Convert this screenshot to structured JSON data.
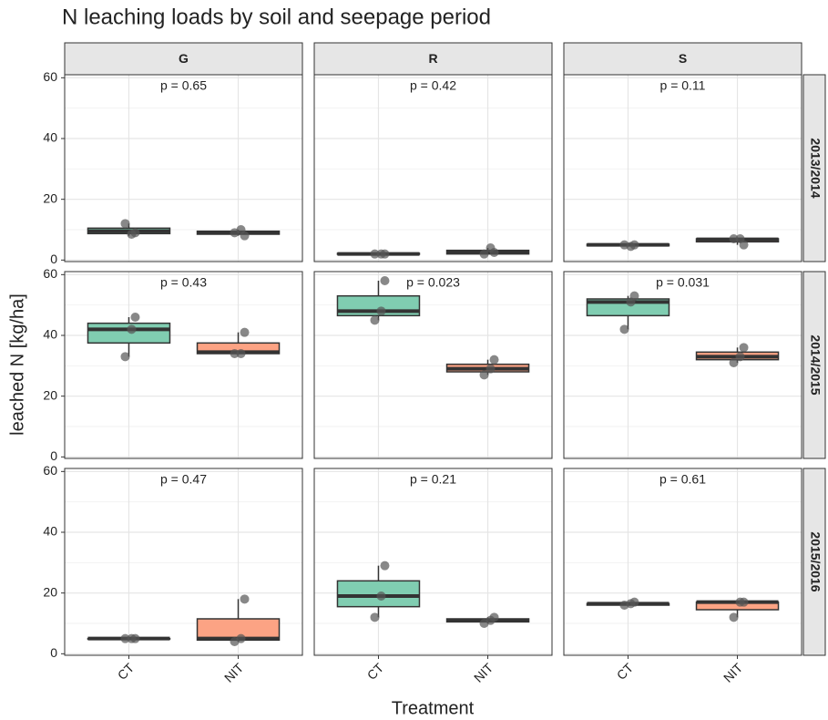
{
  "chart_data": {
    "type": "box",
    "title": "N leaching loads by soil and seepage period",
    "x_label": "Treatment",
    "y_label": "leached N [kg/ha]",
    "columns": [
      "G",
      "R",
      "S"
    ],
    "rows": [
      "2013/2014",
      "2014/2015",
      "2015/2016"
    ],
    "categories": [
      "CT",
      "NIT"
    ],
    "colors": [
      "#80cdb1",
      "#fca384"
    ],
    "ylim": [
      -0.5,
      61
    ],
    "yticks": [
      0,
      20,
      40,
      60
    ],
    "minor_yticks": [
      10,
      30,
      50
    ],
    "grid": true,
    "panels": [
      [
        {
          "p_label": "p = 0.65",
          "boxes": [
            {
              "min": 8,
              "q1": 8.7,
              "median": 9.5,
              "q3": 10.5,
              "max": 12,
              "points": [
                12,
                8.5,
                9
              ]
            },
            {
              "min": 8,
              "q1": 8.5,
              "median": 9,
              "q3": 9.5,
              "max": 10,
              "points": [
                9,
                10,
                8
              ]
            }
          ]
        },
        {
          "p_label": "p = 0.42",
          "boxes": [
            {
              "min": 1.8,
              "q1": 1.9,
              "median": 2,
              "q3": 2.2,
              "max": 2.3,
              "points": [
                2,
                2,
                2
              ]
            },
            {
              "min": 2,
              "q1": 2,
              "median": 2.5,
              "q3": 3.2,
              "max": 4,
              "points": [
                2,
                4,
                2.5
              ]
            }
          ]
        },
        {
          "p_label": "p = 0.11",
          "boxes": [
            {
              "min": 4.5,
              "q1": 4.7,
              "median": 5,
              "q3": 5.2,
              "max": 5.5,
              "points": [
                5,
                4.5,
                5
              ]
            },
            {
              "min": 5,
              "q1": 6,
              "median": 6.8,
              "q3": 7,
              "max": 7.2,
              "points": [
                7,
                7,
                5
              ]
            }
          ]
        }
      ],
      [
        {
          "p_label": "p = 0.43",
          "boxes": [
            {
              "min": 33,
              "q1": 37.5,
              "median": 42,
              "q3": 44,
              "max": 46,
              "points": [
                33,
                42,
                46
              ]
            },
            {
              "min": 34,
              "q1": 34,
              "median": 34.5,
              "q3": 37.5,
              "max": 41,
              "points": [
                34,
                34,
                41
              ]
            }
          ]
        },
        {
          "p_label": "p = 0.023",
          "boxes": [
            {
              "min": 45,
              "q1": 46.5,
              "median": 48,
              "q3": 53,
              "max": 58,
              "points": [
                45,
                48,
                58
              ]
            },
            {
              "min": 27,
              "q1": 28,
              "median": 29,
              "q3": 30.5,
              "max": 32,
              "points": [
                27,
                29,
                32
              ]
            }
          ]
        },
        {
          "p_label": "p = 0.031",
          "boxes": [
            {
              "min": 42,
              "q1": 46.5,
              "median": 51,
              "q3": 52,
              "max": 53,
              "points": [
                42,
                51,
                53
              ]
            },
            {
              "min": 31,
              "q1": 32,
              "median": 33,
              "q3": 34.5,
              "max": 36,
              "points": [
                31,
                33,
                36
              ]
            }
          ]
        }
      ],
      [
        {
          "p_label": "p = 0.47",
          "boxes": [
            {
              "min": 5,
              "q1": 5,
              "median": 5,
              "q3": 5,
              "max": 5,
              "points": [
                5,
                5,
                5
              ]
            },
            {
              "min": 4,
              "q1": 4.5,
              "median": 5,
              "q3": 11.5,
              "max": 18,
              "points": [
                4,
                5,
                18
              ]
            }
          ]
        },
        {
          "p_label": "p = 0.21",
          "boxes": [
            {
              "min": 12,
              "q1": 15.5,
              "median": 19,
              "q3": 24,
              "max": 29,
              "points": [
                12,
                19,
                29
              ]
            },
            {
              "min": 10,
              "q1": 10.5,
              "median": 11,
              "q3": 11.5,
              "max": 12,
              "points": [
                10,
                11,
                12
              ]
            }
          ]
        },
        {
          "p_label": "p = 0.61",
          "boxes": [
            {
              "min": 16,
              "q1": 16,
              "median": 16.5,
              "q3": 16.5,
              "max": 17,
              "points": [
                16,
                16.5,
                17
              ]
            },
            {
              "min": 12,
              "q1": 14.5,
              "median": 17,
              "q3": 17,
              "max": 17,
              "points": [
                12,
                17,
                17
              ]
            }
          ]
        }
      ]
    ]
  }
}
